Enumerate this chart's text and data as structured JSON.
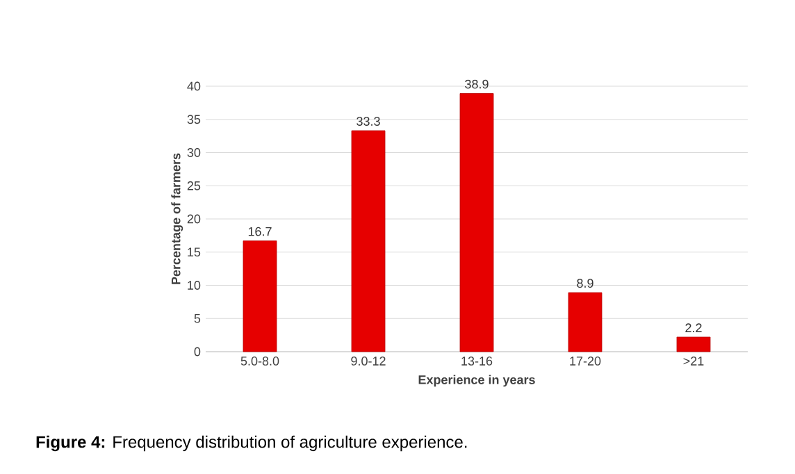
{
  "chart_data": {
    "type": "bar",
    "categories": [
      "5.0-8.0",
      "9.0-12",
      "13-16",
      "17-20",
      ">21"
    ],
    "values": [
      16.7,
      33.3,
      38.9,
      8.9,
      2.2
    ],
    "value_labels": [
      "16.7",
      "33.3",
      "38.9",
      "8.9",
      "2.2"
    ],
    "color": "#e60000",
    "xlabel": "Experience in years",
    "ylabel": "Percentage of farmers",
    "ylim": [
      0,
      40
    ],
    "yticks": [
      0,
      5,
      10,
      15,
      20,
      25,
      30,
      35,
      40
    ],
    "grid": "y",
    "annotations": [
      "**Figure 4:** Frequency distribution of agriculture experience."
    ]
  }
}
